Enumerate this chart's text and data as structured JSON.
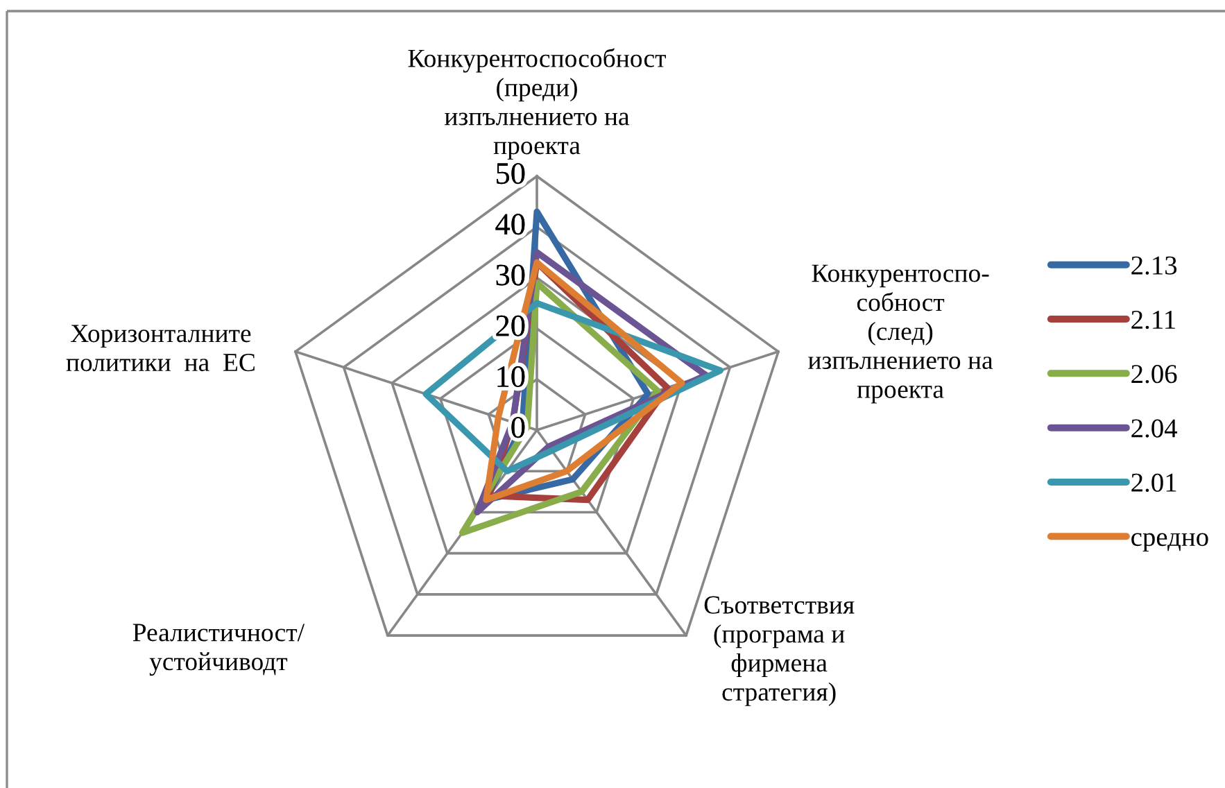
{
  "chart_data": {
    "type": "radar",
    "categories": [
      "Конкурентоспособност\n(преди)\nизпълнението на\nпроекта",
      "Конкурентоспо-\nсобност\n(след)\nизпълнението на\nпроекта",
      "Съответствия\n(програма и\nфирмена\nстратегия)",
      "Реалистичност/\nустойчиводт",
      "Хоризонталните\nполитики  на  ЕС"
    ],
    "ylim": [
      0,
      50
    ],
    "yticks": [
      0,
      10,
      20,
      30,
      40,
      50
    ],
    "grid": true,
    "legend": "right",
    "series": [
      {
        "name": "2.13",
        "color": "#376aa5",
        "values": [
          43,
          23,
          12,
          17,
          3
        ]
      },
      {
        "name": "2.11",
        "color": "#a5403d",
        "values": [
          33,
          27,
          17,
          16,
          5
        ]
      },
      {
        "name": "2.06",
        "color": "#88ad4a",
        "values": [
          29,
          25,
          15,
          25,
          2
        ]
      },
      {
        "name": "2.04",
        "color": "#6b5494",
        "values": [
          35,
          35,
          4,
          20,
          5
        ]
      },
      {
        "name": "2.01",
        "color": "#3a97ad",
        "values": [
          25,
          38,
          5,
          10,
          23
        ]
      },
      {
        "name": "средно",
        "color": "#dd7e33",
        "values": [
          33,
          30,
          10,
          17,
          8
        ]
      }
    ]
  }
}
